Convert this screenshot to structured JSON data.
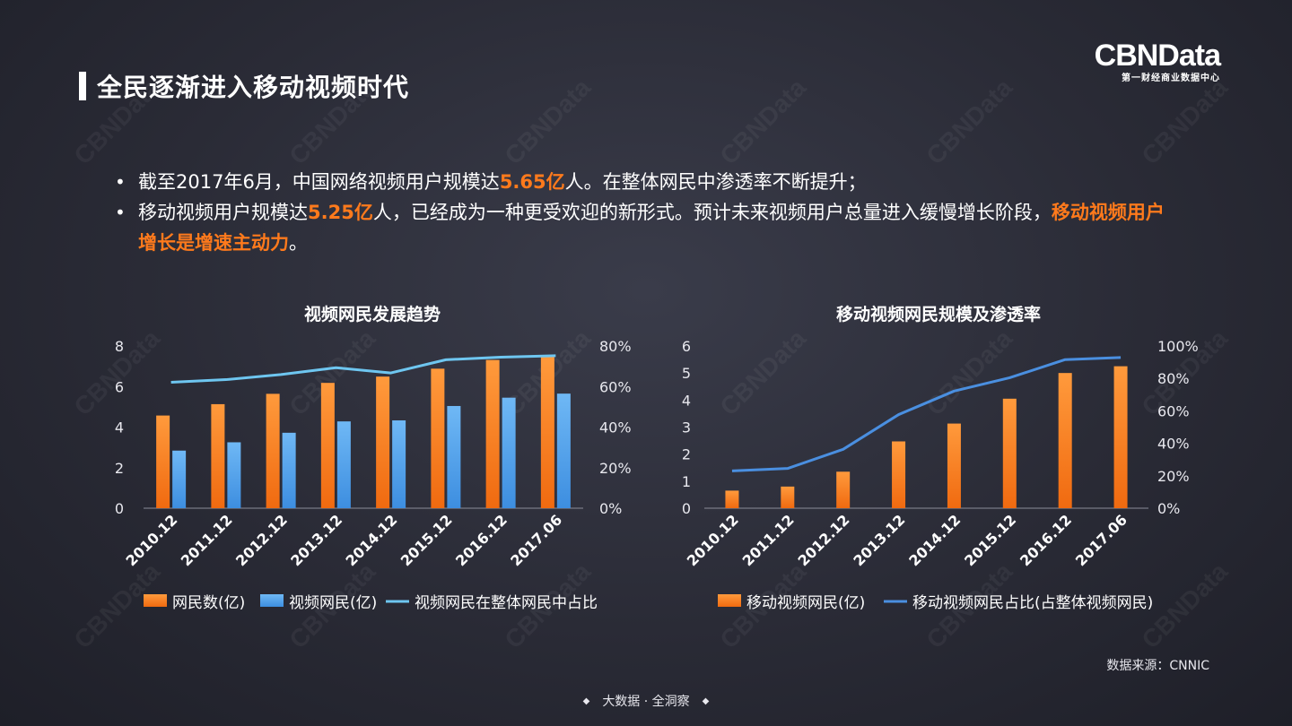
{
  "title": "全民逐渐进入移动视频时代",
  "logo": {
    "main": "CBNData",
    "sub": "第一财经商业数据中心"
  },
  "watermark_text": "CBNData",
  "bullets": [
    {
      "parts": [
        {
          "text": "截至2017年6月，中国网络视频用户规模达",
          "hl": false
        },
        {
          "text": "5.65亿",
          "hl": true
        },
        {
          "text": "人。在整体网民中渗透率不断提升；",
          "hl": false
        }
      ]
    },
    {
      "parts": [
        {
          "text": "移动视频用户规模达",
          "hl": false
        },
        {
          "text": "5.25亿",
          "hl": true
        },
        {
          "text": "人，已经成为一种更受欢迎的新形式。预计未来视频用户总量进入缓慢增长阶段，",
          "hl": false
        },
        {
          "text": "移动视频用户增长是增速主动力",
          "hl": true
        },
        {
          "text": "。",
          "hl": false
        }
      ]
    }
  ],
  "source": "数据来源：CNNIC",
  "footer": "大数据 · 全洞察",
  "colors": {
    "orange": "#ff7a1c",
    "blue_bar": "#5aa8ee",
    "line_light": "#6ec6f0",
    "line_dark": "#4a8fe0"
  },
  "chart_data": [
    {
      "type": "bar",
      "title": "视频网民发展趋势",
      "categories": [
        "2010.12",
        "2011.12",
        "2012.12",
        "2013.12",
        "2014.12",
        "2015.12",
        "2016.12",
        "2017.06"
      ],
      "ylim": [
        0,
        8
      ],
      "yticks": [
        "0",
        "2",
        "4",
        "6",
        "8"
      ],
      "y2lim": [
        0,
        80
      ],
      "y2ticks": [
        "0%",
        "20%",
        "40%",
        "60%",
        "80%"
      ],
      "series": [
        {
          "name": "网民数(亿)",
          "type": "bar",
          "axis": "left",
          "values": [
            4.57,
            5.13,
            5.64,
            6.18,
            6.49,
            6.88,
            7.31,
            7.51
          ]
        },
        {
          "name": "视频网民(亿)",
          "type": "bar",
          "axis": "left",
          "values": [
            2.84,
            3.25,
            3.72,
            4.28,
            4.33,
            5.04,
            5.45,
            5.65
          ]
        },
        {
          "name": "视频网民在整体网民中占比",
          "type": "line",
          "axis": "right",
          "values": [
            62.1,
            63.4,
            65.9,
            69.3,
            66.7,
            73.2,
            74.5,
            75.2
          ]
        }
      ],
      "legend": "bottom"
    },
    {
      "type": "bar",
      "title": "移动视频网民规模及渗透率",
      "categories": [
        "2010.12",
        "2011.12",
        "2012.12",
        "2013.12",
        "2014.12",
        "2015.12",
        "2016.12",
        "2017.06"
      ],
      "ylim": [
        0,
        6
      ],
      "yticks": [
        "0",
        "1",
        "2",
        "3",
        "4",
        "5",
        "6"
      ],
      "y2lim": [
        0,
        100
      ],
      "y2ticks": [
        "0%",
        "20%",
        "40%",
        "60%",
        "80%",
        "100%"
      ],
      "series": [
        {
          "name": "移动视频网民(亿)",
          "type": "bar",
          "axis": "left",
          "values": [
            0.65,
            0.8,
            1.35,
            2.47,
            3.13,
            4.05,
            5.0,
            5.25
          ]
        },
        {
          "name": "移动视频网民占比(占整体视频网民)",
          "type": "line",
          "axis": "right",
          "values": [
            23.0,
            24.5,
            36.3,
            57.7,
            72.2,
            80.4,
            91.6,
            92.9
          ]
        }
      ],
      "legend": "bottom"
    }
  ]
}
